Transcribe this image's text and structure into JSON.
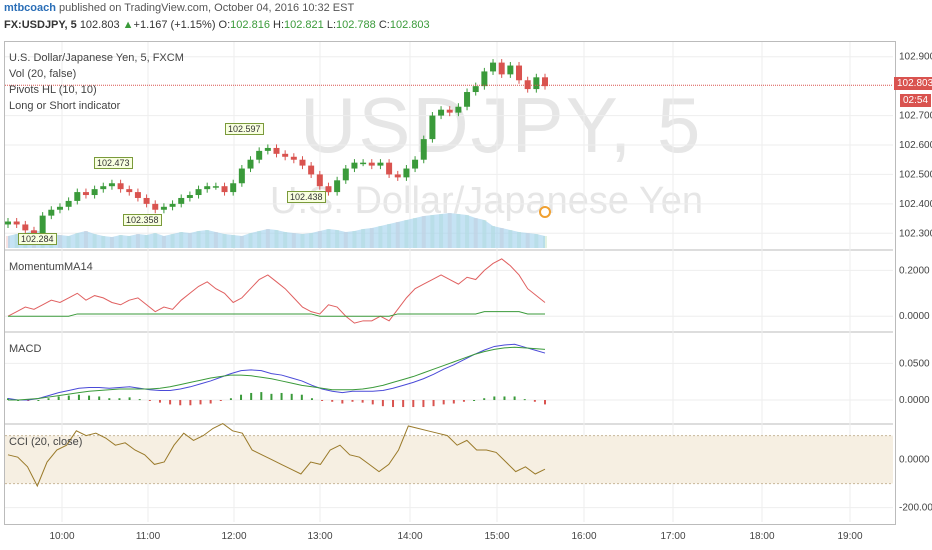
{
  "header": {
    "user": "mtbcoach",
    "published": " published on TradingView.com, October 04, 2016 10:32 EST",
    "symbol": "FX:USDJPY, 5",
    "last": "102.803",
    "change": "+1.167 (+1.15%)",
    "o_label": "O:",
    "o": "102.816",
    "h_label": "H:",
    "h": "102.821",
    "l_label": "L:",
    "l": "102.788",
    "c_label": "C:",
    "c": "102.803"
  },
  "main_pane": {
    "title": "U.S. Dollar/Japanese Yen, 5, FXCM",
    "indicators": [
      "Vol (20, false)",
      "Pivots HL (10, 10)",
      "Long or Short indicator"
    ],
    "watermark_symbol": "USDJPY, 5",
    "watermark_name": "U.S. Dollar/Japanese Yen",
    "price_tag": "102.803",
    "countdown_tag": "02:54",
    "pivots": [
      "102.473",
      "102.597",
      "102.358",
      "102.438",
      "102.284"
    ]
  },
  "momentum_pane": {
    "title": "MomentumMA14"
  },
  "macd_pane": {
    "title": "MACD"
  },
  "cci_pane": {
    "title": "CCI (20, close)"
  },
  "colors": {
    "up": "#3a9a3a",
    "down": "#d9534f",
    "grid": "#eeeeee",
    "price_line": "#d9534f",
    "volume": "#9fd0ec"
  },
  "chart_data": {
    "type": "line",
    "x_tick_labels": [
      "10:00",
      "11:00",
      "12:00",
      "13:00",
      "14:00",
      "15:00",
      "16:00",
      "17:00",
      "18:00",
      "19:00"
    ],
    "price_axis": {
      "ticks": [
        "102.900",
        "102.700",
        "102.600",
        "102.500",
        "102.400",
        "102.300"
      ],
      "ylim": [
        102.25,
        102.95
      ]
    },
    "momentum_axis": {
      "ticks": [
        "0.2000",
        "0.0000"
      ],
      "ylim": [
        -0.06,
        0.28
      ]
    },
    "macd_axis": {
      "ticks": [
        "0.0500",
        "0.0000"
      ],
      "ylim": [
        -0.03,
        0.09
      ]
    },
    "cci_axis": {
      "ticks": [
        "0.0000",
        "-200.0000"
      ],
      "ylim": [
        -260,
        140
      ]
    },
    "price_close": [
      102.34,
      102.33,
      102.31,
      102.3,
      102.36,
      102.38,
      102.39,
      102.41,
      102.44,
      102.43,
      102.45,
      102.46,
      102.47,
      102.45,
      102.44,
      102.42,
      102.4,
      102.38,
      102.39,
      102.4,
      102.42,
      102.43,
      102.45,
      102.46,
      102.46,
      102.44,
      102.47,
      102.52,
      102.55,
      102.58,
      102.59,
      102.57,
      102.56,
      102.55,
      102.53,
      102.5,
      102.46,
      102.44,
      102.48,
      102.52,
      102.54,
      102.54,
      102.53,
      102.54,
      102.5,
      102.49,
      102.52,
      102.55,
      102.62,
      102.7,
      102.72,
      102.71,
      102.73,
      102.78,
      102.8,
      102.85,
      102.88,
      102.84,
      102.87,
      102.82,
      102.79,
      102.83,
      102.8
    ],
    "momentum": [
      0.0,
      0.02,
      0.04,
      0.03,
      0.05,
      0.07,
      0.06,
      0.08,
      0.1,
      0.07,
      0.09,
      0.08,
      0.06,
      0.05,
      0.07,
      0.08,
      0.05,
      0.02,
      0.04,
      0.03,
      0.07,
      0.1,
      0.13,
      0.15,
      0.12,
      0.1,
      0.06,
      0.08,
      0.12,
      0.16,
      0.18,
      0.15,
      0.12,
      0.08,
      0.04,
      0.02,
      0.01,
      0.05,
      0.04,
      0.0,
      -0.03,
      -0.02,
      -0.02,
      0.0,
      -0.02,
      0.03,
      0.08,
      0.12,
      0.14,
      0.16,
      0.18,
      0.16,
      0.14,
      0.17,
      0.16,
      0.2,
      0.23,
      0.25,
      0.22,
      0.18,
      0.12,
      0.09,
      0.06
    ],
    "momentum_ma": [
      0.0,
      0.0,
      0.0,
      0.0,
      0.0,
      0.0,
      0.0,
      0.0,
      0.01,
      0.01,
      0.01,
      0.01,
      0.01,
      0.01,
      0.01,
      0.01,
      0.01,
      0.01,
      0.01,
      0.01,
      0.01,
      0.01,
      0.01,
      0.01,
      0.01,
      0.01,
      0.01,
      0.01,
      0.01,
      0.01,
      0.01,
      0.01,
      0.01,
      0.01,
      0.01,
      0.01,
      0.0,
      0.0,
      0.0,
      0.0,
      0.0,
      0.0,
      0.0,
      0.0,
      0.0,
      0.01,
      0.01,
      0.01,
      0.01,
      0.01,
      0.01,
      0.01,
      0.01,
      0.01,
      0.01,
      0.02,
      0.02,
      0.02,
      0.02,
      0.02,
      0.01,
      0.01,
      0.01
    ],
    "macd": [
      0.002,
      0.0,
      0.0,
      0.002,
      0.006,
      0.01,
      0.013,
      0.016,
      0.017,
      0.017,
      0.016,
      0.017,
      0.018,
      0.016,
      0.014,
      0.013,
      0.013,
      0.015,
      0.018,
      0.022,
      0.026,
      0.031,
      0.036,
      0.04,
      0.041,
      0.04,
      0.036,
      0.034,
      0.03,
      0.026,
      0.02,
      0.015,
      0.012,
      0.01,
      0.012,
      0.012,
      0.012,
      0.013,
      0.016,
      0.02,
      0.024,
      0.029,
      0.035,
      0.042,
      0.048,
      0.055,
      0.062,
      0.068,
      0.073,
      0.075,
      0.076,
      0.072,
      0.068,
      0.064
    ],
    "macd_signal": [
      0.0,
      0.0,
      0.001,
      0.002,
      0.004,
      0.006,
      0.008,
      0.01,
      0.012,
      0.013,
      0.014,
      0.015,
      0.015,
      0.015,
      0.015,
      0.016,
      0.018,
      0.021,
      0.024,
      0.027,
      0.03,
      0.032,
      0.034,
      0.034,
      0.033,
      0.031,
      0.029,
      0.026,
      0.023,
      0.02,
      0.018,
      0.016,
      0.014,
      0.014,
      0.014,
      0.015,
      0.017,
      0.02,
      0.024,
      0.028,
      0.032,
      0.037,
      0.042,
      0.047,
      0.052,
      0.057,
      0.062,
      0.066,
      0.069,
      0.071,
      0.072,
      0.071,
      0.07,
      0.069
    ],
    "cci": [
      20,
      10,
      -30,
      -110,
      -10,
      40,
      60,
      120,
      100,
      110,
      90,
      60,
      70,
      40,
      20,
      -20,
      -10,
      60,
      110,
      80,
      100,
      130,
      150,
      120,
      110,
      40,
      20,
      0,
      -20,
      -40,
      -60,
      -10,
      -20,
      40,
      60,
      20,
      10,
      -20,
      -50,
      -20,
      40,
      140,
      130,
      120,
      110,
      100,
      60,
      80,
      40,
      40,
      30,
      -10,
      -50,
      -30,
      -60,
      -40
    ],
    "volume": [
      12,
      14,
      15,
      18,
      16,
      14,
      13,
      12,
      15,
      17,
      14,
      12,
      11,
      13,
      12,
      14,
      13,
      15,
      12,
      14,
      16,
      15,
      17,
      18,
      16,
      14,
      13,
      12,
      15,
      17,
      19,
      18,
      16,
      15,
      14,
      15,
      17,
      19,
      18,
      16,
      17,
      19,
      20,
      22,
      24,
      26,
      28,
      30,
      32,
      33,
      34,
      35,
      34,
      33,
      30,
      28,
      22,
      20,
      18,
      16,
      15,
      14,
      12
    ]
  }
}
